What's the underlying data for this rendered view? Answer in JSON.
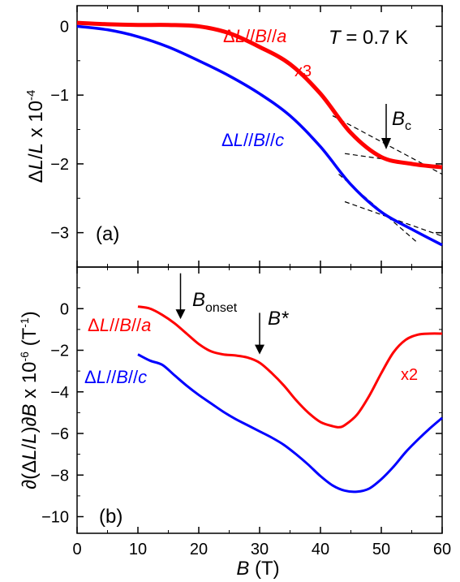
{
  "chart_data": [
    {
      "panel": "(a)",
      "type": "line",
      "ylabel_parts": [
        "Δ",
        "L",
        "/",
        "L",
        " x 10",
        "-4"
      ],
      "ylim": [
        -3.5,
        0.3
      ],
      "yticks": [
        0,
        -1,
        -2,
        -3
      ],
      "xlim": [
        0,
        60
      ],
      "annotations": {
        "temperature_symbol": "T",
        "temperature_value": " = 0.7 K",
        "panel_label": "(a)",
        "critical_field_symbol": "B",
        "critical_field_sub": "c",
        "multiplier": "x3"
      },
      "series": [
        {
          "name_parts": [
            "Δ",
            "L",
            "//",
            "B",
            "//",
            "a"
          ],
          "color": "#ff0000",
          "x": [
            0,
            5,
            10,
            15,
            20,
            25,
            30,
            35,
            40,
            45,
            50,
            55,
            60
          ],
          "y": [
            0.05,
            0.03,
            0.02,
            0.02,
            0.0,
            -0.1,
            -0.3,
            -0.55,
            -0.98,
            -1.55,
            -1.9,
            -2.0,
            -2.05
          ]
        },
        {
          "name_parts": [
            "Δ",
            "L",
            "//",
            "B",
            "//",
            "c"
          ],
          "color": "#0000ff",
          "x": [
            0,
            5,
            10,
            15,
            20,
            25,
            30,
            35,
            40,
            45,
            50,
            55,
            60
          ],
          "y": [
            0.0,
            -0.05,
            -0.15,
            -0.3,
            -0.5,
            -0.72,
            -0.98,
            -1.3,
            -1.75,
            -2.3,
            -2.7,
            -2.95,
            -3.18
          ]
        }
      ],
      "guide_lines": [
        {
          "x": [
            42,
            60
          ],
          "y": [
            -1.3,
            -2.15
          ]
        },
        {
          "x": [
            44,
            60
          ],
          "y": [
            -1.85,
            -2.05
          ]
        },
        {
          "x": [
            43,
            56
          ],
          "y": [
            -2.15,
            -3.15
          ]
        },
        {
          "x": [
            44,
            60
          ],
          "y": [
            -2.55,
            -3.05
          ]
        }
      ]
    },
    {
      "panel": "(b)",
      "type": "line",
      "ylabel_parts": [
        "∂(Δ",
        "L",
        "/",
        "L",
        ")∂",
        "B",
        " x 10",
        "-6",
        " (T",
        "-1",
        ")"
      ],
      "ylim": [
        -10.8,
        2
      ],
      "yticks": [
        0,
        -2,
        -4,
        -6,
        -8,
        -10
      ],
      "xlim": [
        0,
        60
      ],
      "xticks": [
        0,
        10,
        20,
        30,
        40,
        50,
        60
      ],
      "xlabel_parts": [
        "B",
        " (T)"
      ],
      "annotations": {
        "panel_label": "(b)",
        "onset_symbol": "B",
        "onset_sub": "onset",
        "star_symbol": "B*",
        "multiplier": "x2"
      },
      "series": [
        {
          "name_parts": [
            "Δ",
            "L",
            "//",
            "B",
            "//",
            "a"
          ],
          "color": "#ff0000",
          "x": [
            10,
            12,
            14,
            16,
            18,
            20,
            22,
            24,
            26,
            28,
            30,
            32,
            34,
            36,
            38,
            40,
            42,
            43,
            44,
            46,
            48,
            50,
            52,
            54,
            56,
            58,
            60
          ],
          "y": [
            0.1,
            0.0,
            -0.3,
            -0.7,
            -1.2,
            -1.7,
            -2.05,
            -2.2,
            -2.25,
            -2.35,
            -2.6,
            -3.1,
            -3.7,
            -4.4,
            -5.0,
            -5.45,
            -5.65,
            -5.7,
            -5.6,
            -5.1,
            -4.2,
            -3.1,
            -2.1,
            -1.5,
            -1.25,
            -1.2,
            -1.2
          ]
        },
        {
          "name_parts": [
            "Δ",
            "L",
            "//",
            "B",
            "//",
            "c"
          ],
          "color": "#0000ff",
          "x": [
            10,
            12,
            14,
            16,
            18,
            20,
            22,
            24,
            26,
            28,
            30,
            32,
            34,
            36,
            38,
            40,
            42,
            44,
            46,
            48,
            50,
            52,
            54,
            56,
            58,
            60
          ],
          "y": [
            -2.2,
            -2.5,
            -2.7,
            -3.2,
            -3.7,
            -4.15,
            -4.55,
            -4.95,
            -5.3,
            -5.6,
            -5.9,
            -6.2,
            -6.55,
            -7.0,
            -7.5,
            -8.05,
            -8.5,
            -8.75,
            -8.8,
            -8.65,
            -8.2,
            -7.6,
            -6.9,
            -6.3,
            -5.75,
            -5.25
          ]
        }
      ],
      "arrows": [
        {
          "x": 17,
          "y_from": 1.7,
          "y_to": -0.5
        },
        {
          "x": 30,
          "y_from": -0.2,
          "y_to": -2.2
        }
      ]
    }
  ]
}
